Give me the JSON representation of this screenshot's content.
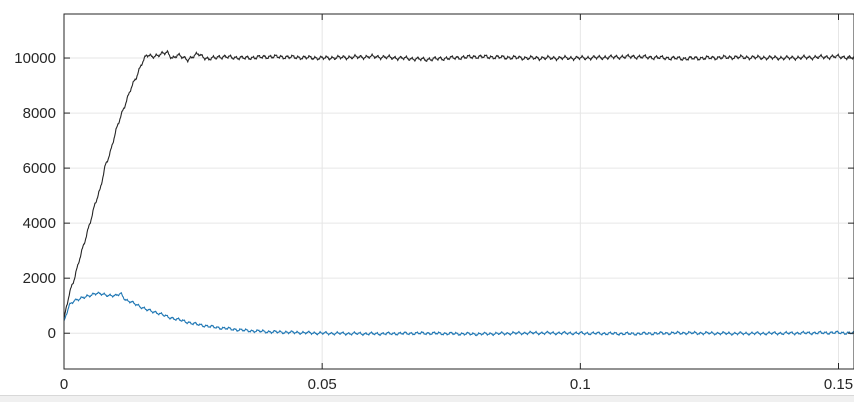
{
  "chart_data": {
    "type": "line",
    "title": "",
    "xlabel": "",
    "ylabel": "",
    "xlim": [
      0,
      0.153
    ],
    "ylim": [
      -1300,
      11600
    ],
    "grid": true,
    "x_ticks": [
      0,
      0.05,
      0.1,
      0.15
    ],
    "x_tick_labels": [
      "0",
      "0.05",
      "0.1",
      "0.15"
    ],
    "y_ticks": [
      0,
      2000,
      4000,
      6000,
      8000,
      10000
    ],
    "y_tick_labels": [
      "0",
      "2000",
      "4000",
      "6000",
      "8000",
      "10000"
    ],
    "series": [
      {
        "color": "#262626",
        "x": [
          0,
          0.001,
          0.002,
          0.003,
          0.004,
          0.005,
          0.006,
          0.007,
          0.008,
          0.009,
          0.01,
          0.011,
          0.012,
          0.013,
          0.014,
          0.015,
          0.016,
          0.017,
          0.018,
          0.019,
          0.02,
          0.021,
          0.022,
          0.024,
          0.026,
          0.028,
          0.03,
          0.035,
          0.04,
          0.05,
          0.06,
          0.07,
          0.08,
          0.09,
          0.1,
          0.11,
          0.12,
          0.13,
          0.14,
          0.15,
          0.153
        ],
        "y": [
          500,
          1400,
          2000,
          2700,
          3300,
          4000,
          4700,
          5200,
          6100,
          6600,
          7300,
          7900,
          8400,
          8900,
          9300,
          9800,
          10100,
          10050,
          10100,
          10150,
          10200,
          10000,
          10100,
          9950,
          10150,
          9950,
          10050,
          10000,
          10050,
          10000,
          10050,
          9950,
          10050,
          10000,
          10000,
          10050,
          9980,
          10030,
          10000,
          10050,
          10000
        ],
        "noise_amplitude": 80
      },
      {
        "color": "#1f77b4",
        "x": [
          0,
          0.001,
          0.002,
          0.004,
          0.006,
          0.008,
          0.01,
          0.011,
          0.012,
          0.014,
          0.016,
          0.018,
          0.02,
          0.022,
          0.025,
          0.028,
          0.03,
          0.035,
          0.04,
          0.05,
          0.06,
          0.07,
          0.08,
          0.09,
          0.1,
          0.11,
          0.12,
          0.13,
          0.14,
          0.15,
          0.153
        ],
        "y": [
          400,
          1000,
          1200,
          1300,
          1450,
          1400,
          1350,
          1450,
          1200,
          1050,
          850,
          750,
          600,
          500,
          350,
          250,
          200,
          100,
          50,
          0,
          -20,
          0,
          -30,
          10,
          0,
          -20,
          10,
          -10,
          0,
          20,
          0
        ],
        "noise_amplitude": 60
      }
    ]
  }
}
